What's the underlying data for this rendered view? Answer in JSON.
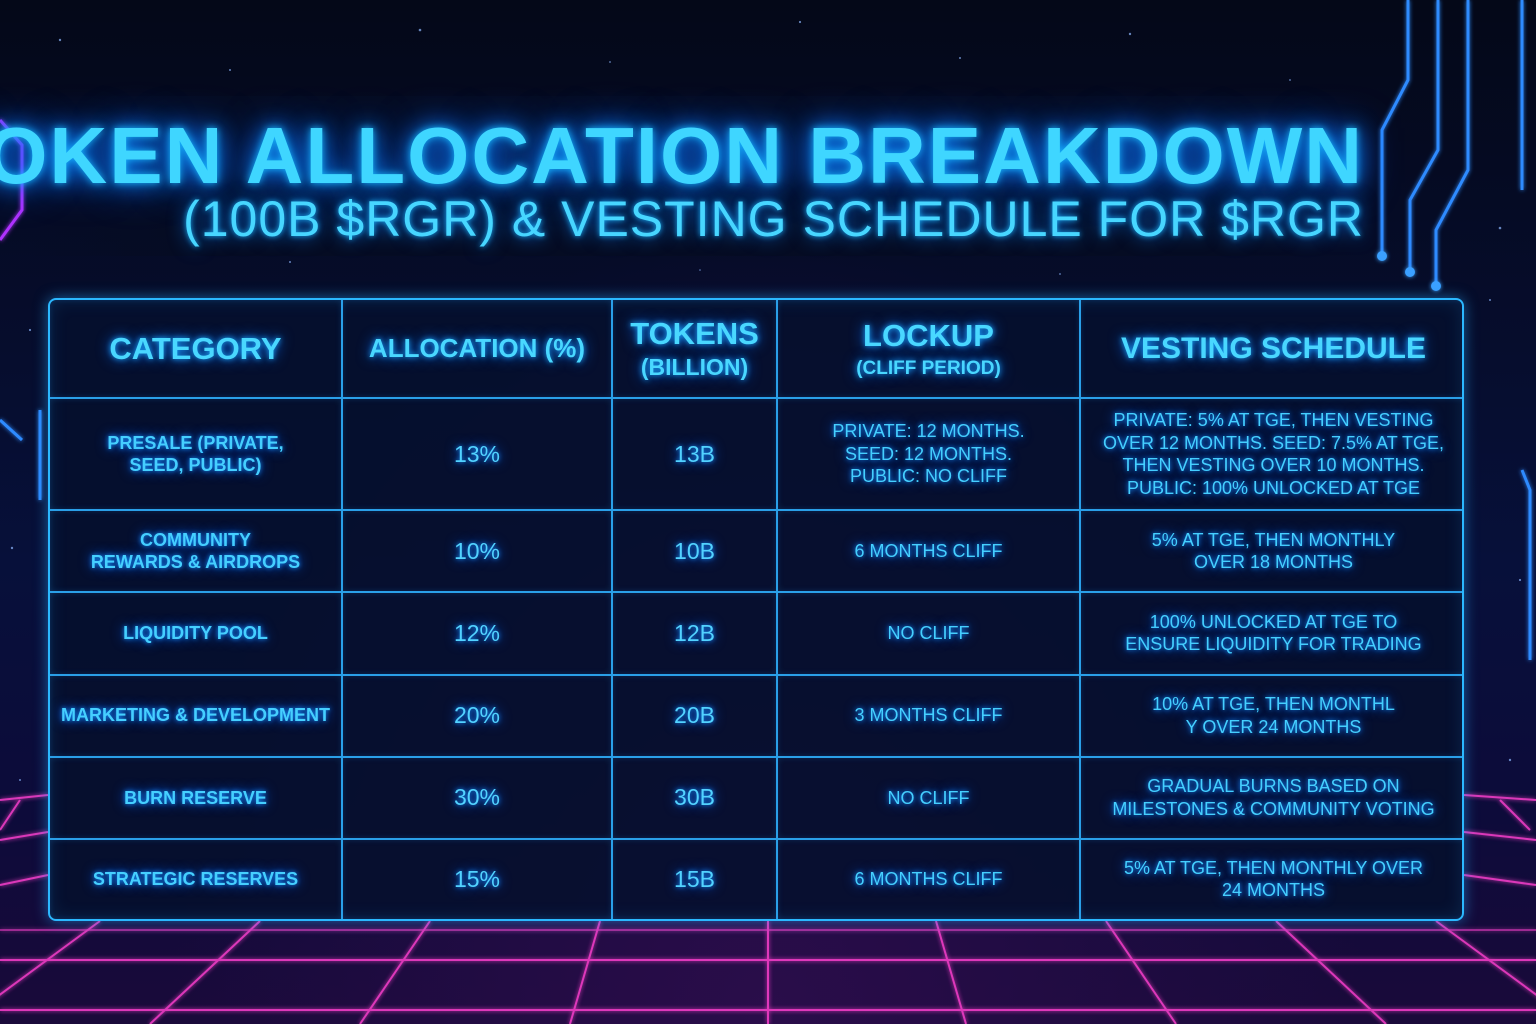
{
  "title": "TOKEN ALLOCATION BREAKDOWN",
  "subtitle": "(100B $RGR) & VESTING SCHEDULE FOR $RGR",
  "table": {
    "headers": {
      "category": "CATEGORY",
      "allocation": "ALLOCATION (%)",
      "tokens": "TOKENS",
      "tokens_sub": "(BILLION)",
      "lockup": "LOCKUP",
      "lockup_sub": "(CLIFF PERIOD)",
      "vesting": "VESTING SCHEDULE"
    },
    "rows": [
      {
        "category": [
          "PRESALE (PRIVATE,",
          "SEED, PUBLIC)"
        ],
        "allocation": "13%",
        "tokens": "13B",
        "lockup": [
          "PRIVATE: 12 MONTHS.",
          "SEED: 12 MONTHS.",
          "PUBLIC: NO CLIFF"
        ],
        "vesting": [
          "PRIVATE: 5% AT TGE, THEN VESTING",
          "OVER 12 MONTHS. SEED: 7.5% AT TGE,",
          "THEN VESTING OVER 10 MONTHS.",
          "PUBLIC: 100% UNLOCKED AT TGE"
        ]
      },
      {
        "category": [
          "COMMUNITY",
          "REWARDS & AIRDROPS"
        ],
        "allocation": "10%",
        "tokens": "10B",
        "lockup": [
          "6 MONTHS CLIFF"
        ],
        "vesting": [
          "5% AT TGE, THEN MONTHLY",
          "OVER 18 MONTHS"
        ]
      },
      {
        "category": [
          "LIQUIDITY POOL"
        ],
        "allocation": "12%",
        "tokens": "12B",
        "lockup": [
          "NO CLIFF"
        ],
        "vesting": [
          "100% UNLOCKED AT TGE TO",
          "ENSURE LIQUIDITY FOR TRADING"
        ]
      },
      {
        "category": [
          "MARKETING & DEVELOPMENT"
        ],
        "allocation": "20%",
        "tokens": "20B",
        "lockup": [
          "3 MONTHS CLIFF"
        ],
        "vesting": [
          "10% AT TGE, THEN MONTHL",
          "Y OVER 24 MONTHS"
        ]
      },
      {
        "category": [
          "BURN RESERVE"
        ],
        "allocation": "30%",
        "tokens": "30B",
        "lockup": [
          "NO CLIFF"
        ],
        "vesting": [
          "GRADUAL BURNS BASED ON",
          "MILESTONES & COMMUNITY VOTING"
        ]
      },
      {
        "category": [
          "STRATEGIC RESERVES"
        ],
        "allocation": "15%",
        "tokens": "15B",
        "lockup": [
          "6 MONTHS CLIFF"
        ],
        "vesting": [
          "5% AT TGE, THEN MONTHLY OVER",
          "24 MONTHS"
        ]
      }
    ]
  },
  "colors": {
    "accent": "#3fd6ff",
    "grid_neon": "#ff3fd0",
    "circuit": "#2f8bff",
    "background": "#050a20"
  }
}
